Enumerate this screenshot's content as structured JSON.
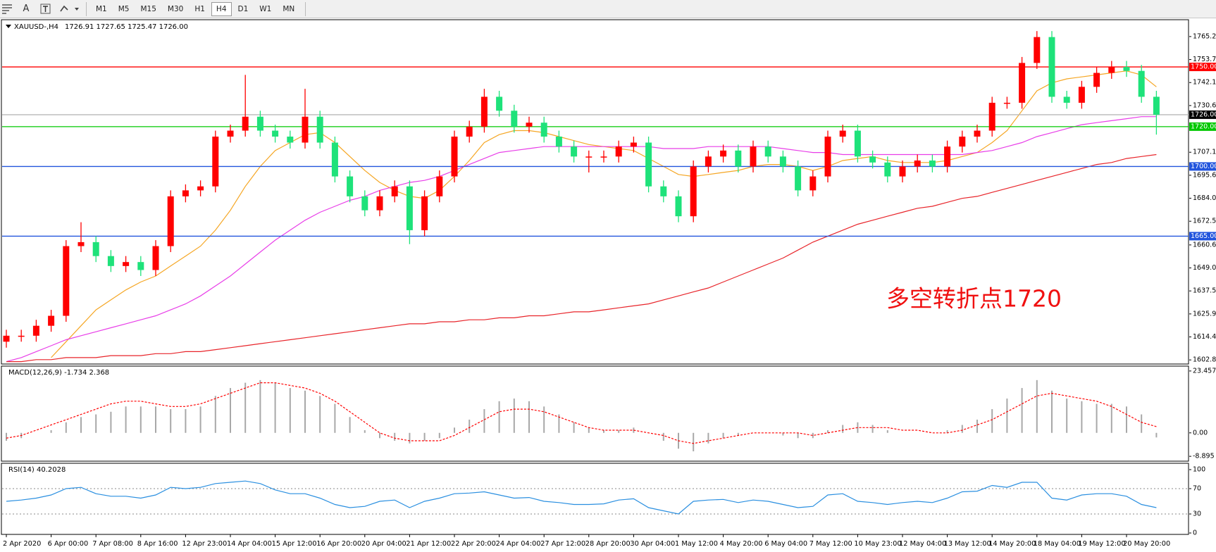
{
  "toolbar": {
    "periods": [
      "M1",
      "M5",
      "M15",
      "M30",
      "H1",
      "H4",
      "D1",
      "W1",
      "MN"
    ],
    "active": "H4",
    "text_tool": "A"
  },
  "chart_data": [
    {
      "type": "candlestick",
      "title": "XAUUSD-,H4",
      "subtitle": "1726.91 1727.65 1725.47 1726.00",
      "annotation": "多空转折点1720",
      "categories": [
        "2 Apr 2020",
        null,
        null,
        "6 Apr 00:00",
        null,
        null,
        "7 Apr 08:00",
        null,
        null,
        "8 Apr 16:00",
        null,
        null,
        "12 Apr 23:00",
        null,
        null,
        "14 Apr 04:00",
        null,
        null,
        "15 Apr 12:00",
        null,
        null,
        "16 Apr 20:00",
        null,
        null,
        "20 Apr 04:00",
        null,
        null,
        "21 Apr 12:00",
        null,
        null,
        "22 Apr 20:00",
        null,
        null,
        "24 Apr 04:00",
        null,
        null,
        "27 Apr 12:00",
        null,
        null,
        "28 Apr 20:00",
        null,
        null,
        "30 Apr 04:00",
        null,
        null,
        "1 May 12:00",
        null,
        null,
        "4 May 20:00",
        null,
        null,
        "6 May 04:00",
        null,
        null,
        "7 May 12:00",
        null,
        null,
        "10 May 23:00",
        null,
        null,
        "12 May 04:00",
        null,
        null,
        "13 May 12:00",
        null,
        null,
        "14 May 20:00",
        null,
        null,
        "18 May 04:00",
        null,
        null,
        "19 May 12:00",
        null,
        null,
        "20 May 20:00",
        null,
        null
      ],
      "open": [
        1612,
        1615,
        1615,
        1620,
        1625,
        1660,
        1662,
        1655,
        1650,
        1652,
        1648,
        1660,
        1685,
        1688,
        1690,
        1715,
        1718,
        1725,
        1718,
        1715,
        1712,
        1725,
        1712,
        1695,
        1685,
        1678,
        1685,
        1690,
        1668,
        1685,
        1695,
        1715,
        1720,
        1735,
        1728,
        1720,
        1722,
        1715,
        1710,
        1705,
        1705,
        1705,
        1710,
        1712,
        1690,
        1685,
        1675,
        1700,
        1705,
        1708,
        1700,
        1710,
        1705,
        1700,
        1688,
        1695,
        1715,
        1718,
        1705,
        1702,
        1695,
        1700,
        1703,
        1700,
        1710,
        1715,
        1718,
        1732,
        1732,
        1752,
        1765,
        1735,
        1732,
        1740,
        1747,
        1750,
        1748,
        1735
      ],
      "high": [
        1618,
        1618,
        1623,
        1628,
        1663,
        1672,
        1665,
        1658,
        1655,
        1655,
        1663,
        1688,
        1691,
        1693,
        1718,
        1721,
        1746,
        1728,
        1721,
        1718,
        1739,
        1728,
        1715,
        1698,
        1688,
        1688,
        1693,
        1693,
        1688,
        1698,
        1718,
        1723,
        1739,
        1738,
        1731,
        1725,
        1725,
        1718,
        1713,
        1708,
        1708,
        1713,
        1715,
        1715,
        1693,
        1688,
        1703,
        1708,
        1711,
        1711,
        1713,
        1713,
        1708,
        1703,
        1698,
        1718,
        1721,
        1721,
        1708,
        1705,
        1703,
        1706,
        1706,
        1713,
        1718,
        1721,
        1735,
        1735,
        1755,
        1768,
        1768,
        1738,
        1743,
        1750,
        1753,
        1753,
        1751,
        1738
      ],
      "low": [
        1609,
        1612,
        1612,
        1617,
        1622,
        1657,
        1652,
        1647,
        1647,
        1645,
        1645,
        1657,
        1682,
        1685,
        1687,
        1712,
        1715,
        1715,
        1712,
        1709,
        1709,
        1709,
        1692,
        1682,
        1675,
        1675,
        1682,
        1661,
        1665,
        1682,
        1692,
        1712,
        1717,
        1725,
        1717,
        1717,
        1712,
        1707,
        1702,
        1697,
        1702,
        1702,
        1707,
        1687,
        1682,
        1672,
        1672,
        1697,
        1702,
        1697,
        1697,
        1702,
        1697,
        1685,
        1685,
        1692,
        1712,
        1702,
        1699,
        1692,
        1692,
        1697,
        1697,
        1697,
        1707,
        1712,
        1715,
        1729,
        1729,
        1749,
        1732,
        1729,
        1729,
        1737,
        1744,
        1745,
        1732,
        1716
      ],
      "close": [
        1615,
        1615,
        1620,
        1625,
        1660,
        1662,
        1655,
        1650,
        1652,
        1648,
        1660,
        1685,
        1688,
        1690,
        1715,
        1718,
        1725,
        1718,
        1715,
        1712,
        1725,
        1712,
        1695,
        1685,
        1678,
        1685,
        1690,
        1668,
        1685,
        1695,
        1715,
        1720,
        1735,
        1728,
        1720,
        1722,
        1715,
        1710,
        1705,
        1705,
        1705,
        1710,
        1712,
        1690,
        1685,
        1675,
        1700,
        1705,
        1708,
        1700,
        1710,
        1705,
        1700,
        1688,
        1695,
        1715,
        1718,
        1705,
        1702,
        1695,
        1700,
        1703,
        1700,
        1710,
        1715,
        1718,
        1732,
        1732,
        1752,
        1765,
        1735,
        1732,
        1740,
        1747,
        1750,
        1748,
        1735,
        1726
      ],
      "up_color": "#ff0000",
      "down_color": "#1ee27a",
      "overlays": [
        {
          "color": "#f5a623",
          "values": [
            null,
            null,
            null,
            1604,
            1612,
            1620,
            1628,
            1633,
            1638,
            1642,
            1645,
            1650,
            1655,
            1660,
            1668,
            1678,
            1690,
            1700,
            1708,
            1712,
            1716,
            1717,
            1712,
            1705,
            1698,
            1692,
            1688,
            1685,
            1684,
            1688,
            1695,
            1703,
            1712,
            1716,
            1718,
            1718,
            1717,
            1715,
            1713,
            1711,
            1710,
            1709,
            1708,
            1704,
            1700,
            1696,
            1695,
            1696,
            1697,
            1698,
            1700,
            1701,
            1701,
            1700,
            1698,
            1700,
            1703,
            1704,
            1705,
            1703,
            1702,
            1702,
            1702,
            1703,
            1705,
            1707,
            1712,
            1718,
            1728,
            1738,
            1742,
            1744,
            1745,
            1746,
            1747,
            1748,
            1746,
            1740
          ]
        },
        {
          "color": "#e83ee8",
          "values": [
            1602,
            1604,
            1607,
            1610,
            1613,
            1615,
            1617,
            1619,
            1621,
            1623,
            1625,
            1628,
            1631,
            1635,
            1640,
            1645,
            1651,
            1657,
            1663,
            1668,
            1673,
            1677,
            1680,
            1683,
            1685,
            1688,
            1690,
            1692,
            1693,
            1695,
            1698,
            1701,
            1704,
            1707,
            1708,
            1709,
            1710,
            1710,
            1710,
            1710,
            1710,
            1710,
            1710,
            1710,
            1709,
            1709,
            1709,
            1710,
            1710,
            1710,
            1710,
            1710,
            1709,
            1708,
            1707,
            1707,
            1706,
            1706,
            1706,
            1706,
            1706,
            1706,
            1706,
            1706,
            1706,
            1707,
            1708,
            1710,
            1712,
            1715,
            1717,
            1719,
            1721,
            1722,
            1723,
            1724,
            1725,
            1725
          ]
        },
        {
          "color": "#e8242a",
          "values": [
            1602,
            1602,
            1603,
            1603,
            1604,
            1604,
            1604,
            1605,
            1605,
            1605,
            1606,
            1606,
            1607,
            1607,
            1608,
            1609,
            1610,
            1611,
            1612,
            1613,
            1614,
            1615,
            1616,
            1617,
            1618,
            1619,
            1620,
            1621,
            1621,
            1622,
            1622,
            1623,
            1623,
            1624,
            1624,
            1625,
            1625,
            1626,
            1627,
            1627,
            1628,
            1629,
            1630,
            1631,
            1633,
            1635,
            1637,
            1639,
            1642,
            1645,
            1648,
            1651,
            1654,
            1658,
            1662,
            1665,
            1668,
            1671,
            1673,
            1675,
            1677,
            1679,
            1680,
            1682,
            1684,
            1685,
            1687,
            1689,
            1691,
            1693,
            1695,
            1697,
            1699,
            1701,
            1702,
            1704,
            1705,
            1706
          ]
        }
      ],
      "hlines": [
        {
          "value": 1750,
          "label": "1750.00",
          "color": "#ff0000",
          "box_color": "#ff0000"
        },
        {
          "value": 1726,
          "label": "1726.00",
          "color": "#b8b8b8",
          "box_color": "#000000"
        },
        {
          "value": 1720,
          "label": "1720.00",
          "color": "#00c800",
          "box_color": "#00c800"
        },
        {
          "value": 1700,
          "label": "1700.00",
          "color": "#2255dd",
          "box_color": "#2255dd"
        },
        {
          "value": 1665,
          "label": "1665.00",
          "color": "#2255dd",
          "box_color": "#2255dd"
        }
      ],
      "ylim": [
        1601.5,
        1773
      ],
      "yticks": [
        1765.25,
        {
          "value": 1753.7,
          "label": "1753.70"
        },
        1742.15,
        {
          "value": 1730.6,
          "label": "1730.60"
        },
        1707.15,
        {
          "value": 1695.6,
          "label": "1695.60"
        },
        1684.05,
        {
          "value": 1672.5,
          "label": "1672.50"
        },
        {
          "value": 1660.6,
          "label": "1660.60"
        },
        1649.05,
        {
          "value": 1637.5,
          "label": "1637.50"
        },
        1625.95,
        {
          "value": 1614.4,
          "label": "1614.40"
        },
        1602.85
      ]
    },
    {
      "type": "macd",
      "title": "MACD(12,26,9) -1.734 2.368",
      "series": [
        {
          "style": "bar",
          "color": "#a8a8a8",
          "values": [
            -3,
            -2,
            0,
            1,
            4,
            6,
            7,
            8,
            10,
            10,
            10,
            9,
            9,
            10,
            14,
            17,
            19,
            20,
            19,
            17,
            16,
            14,
            11,
            6,
            1,
            -2,
            -3,
            -4,
            -3,
            -2,
            2,
            5,
            9,
            12,
            13,
            12,
            10,
            7,
            4,
            2,
            1,
            1,
            2,
            0,
            -3,
            -6,
            -7,
            -4,
            -2,
            -1,
            0,
            0,
            -1,
            -2,
            -2,
            1,
            3,
            4,
            3,
            1,
            0,
            0,
            0,
            1,
            3,
            5,
            9,
            13,
            17,
            20,
            16,
            13,
            12,
            11,
            11,
            10,
            7,
            -1.734
          ]
        },
        {
          "style": "dotted",
          "color": "#ff0000",
          "values": [
            -2,
            -1,
            1,
            3,
            5,
            7,
            9,
            11,
            12,
            12,
            11,
            10,
            10,
            11,
            13,
            15,
            17,
            19,
            19,
            18,
            17,
            15,
            12,
            8,
            4,
            0,
            -2,
            -3,
            -3,
            -3,
            -1,
            2,
            5,
            8,
            9,
            9,
            8,
            6,
            4,
            2,
            1,
            1,
            1,
            0,
            -1,
            -3,
            -4,
            -3,
            -2,
            -1,
            0,
            0,
            0,
            0,
            -1,
            0,
            1,
            2,
            2,
            2,
            1,
            1,
            0,
            0,
            1,
            3,
            5,
            8,
            11,
            14,
            15,
            14,
            13,
            12,
            10,
            7,
            4,
            2.368
          ]
        }
      ],
      "ylim": [
        -10.2,
        24.5
      ],
      "yticks": [
        23.457,
        {
          "value": 0,
          "label": "0.00"
        },
        -8.895
      ]
    },
    {
      "type": "line",
      "title": "RSI(14) 40.2028",
      "color": "#2a8fe0",
      "grid": true,
      "values": [
        50,
        52,
        55,
        60,
        70,
        72,
        62,
        58,
        58,
        55,
        60,
        72,
        70,
        72,
        78,
        80,
        82,
        78,
        68,
        62,
        62,
        55,
        45,
        40,
        42,
        50,
        52,
        40,
        50,
        55,
        62,
        63,
        65,
        60,
        55,
        56,
        50,
        48,
        45,
        45,
        46,
        52,
        54,
        40,
        35,
        30,
        50,
        52,
        53,
        48,
        52,
        50,
        45,
        40,
        42,
        60,
        62,
        50,
        48,
        45,
        48,
        50,
        48,
        55,
        65,
        66,
        75,
        72,
        80,
        80,
        55,
        52,
        60,
        62,
        62,
        58,
        45,
        40
      ],
      "ylim": [
        0,
        100
      ],
      "yticks": [
        100,
        70,
        30,
        0
      ]
    }
  ]
}
